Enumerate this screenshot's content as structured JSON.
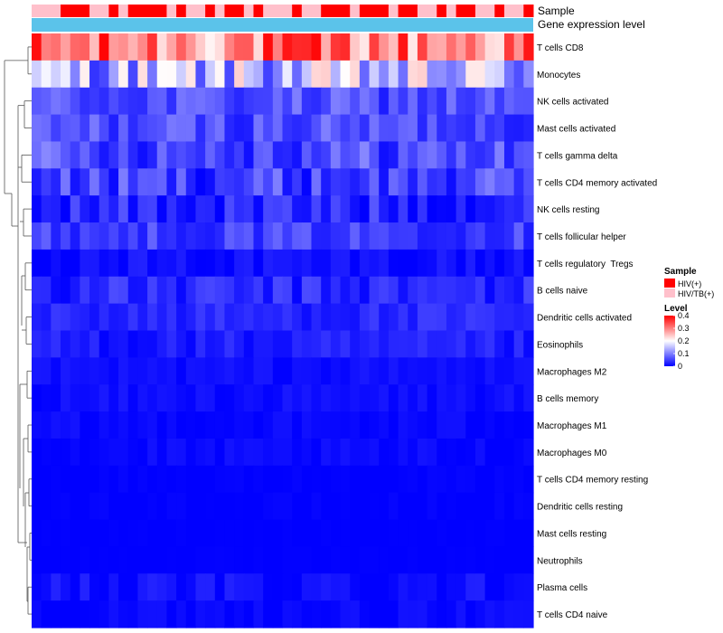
{
  "chart_data": {
    "type": "heatmap",
    "title": "",
    "annotation_tracks": [
      {
        "name": "Sample",
        "label": "Sample"
      },
      {
        "name": "Gene expression level",
        "label": "Gene expression level"
      }
    ],
    "sample_groups": [
      "HIV/TB(+)",
      "HIV/TB(+)",
      "HIV/TB(+)",
      "HIV(+)",
      "HIV(+)",
      "HIV(+)",
      "HIV/TB(+)",
      "HIV/TB(+)",
      "HIV(+)",
      "HIV/TB(+)",
      "HIV(+)",
      "HIV(+)",
      "HIV(+)",
      "HIV(+)",
      "HIV/TB(+)",
      "HIV(+)",
      "HIV/TB(+)",
      "HIV/TB(+)",
      "HIV(+)",
      "HIV/TB(+)",
      "HIV(+)",
      "HIV(+)",
      "HIV/TB(+)",
      "HIV(+)",
      "HIV/TB(+)",
      "HIV/TB(+)",
      "HIV/TB(+)",
      "HIV(+)",
      "HIV/TB(+)",
      "HIV/TB(+)",
      "HIV(+)",
      "HIV(+)",
      "HIV(+)",
      "HIV/TB(+)",
      "HIV(+)",
      "HIV(+)",
      "HIV(+)",
      "HIV/TB(+)",
      "HIV(+)",
      "HIV(+)",
      "HIV/TB(+)",
      "HIV/TB(+)",
      "HIV(+)",
      "HIV/TB(+)",
      "HIV(+)",
      "HIV(+)",
      "HIV/TB(+)",
      "HIV/TB(+)",
      "HIV(+)",
      "HIV/TB(+)",
      "HIV/TB(+)",
      "HIV(+)"
    ],
    "expression_level_color": "#5bc3ea",
    "rows": [
      "T cells CD8",
      "Monocytes",
      "NK cells activated",
      "Mast cells activated",
      "T cells gamma delta",
      "T cells CD4 memory activated",
      "NK cells resting",
      "T cells follicular helper",
      "T cells regulatory  Tregs",
      "B cells naive",
      "Dendritic cells activated",
      "Eosinophils",
      "Macrophages M2",
      "B cells memory",
      "Macrophages M1",
      "Macrophages M0",
      "T cells CD4 memory resting",
      "Dendritic cells resting",
      "Mast cells resting",
      "Neutrophils",
      "Plasma cells",
      "T cells CD4 naive"
    ],
    "row_profiles": [
      {
        "base": 0.3,
        "spread": 0.1,
        "max": 0.4
      },
      {
        "base": 0.14,
        "spread": 0.1,
        "max": 0.4
      },
      {
        "base": 0.06,
        "spread": 0.04,
        "max": 0.15
      },
      {
        "base": 0.06,
        "spread": 0.04,
        "max": 0.15
      },
      {
        "base": 0.06,
        "spread": 0.05,
        "max": 0.2
      },
      {
        "base": 0.05,
        "spread": 0.05,
        "max": 0.2
      },
      {
        "base": 0.03,
        "spread": 0.04,
        "max": 0.15
      },
      {
        "base": 0.05,
        "spread": 0.03,
        "max": 0.1
      },
      {
        "base": 0.01,
        "spread": 0.02,
        "max": 0.08
      },
      {
        "base": 0.03,
        "spread": 0.03,
        "max": 0.1
      },
      {
        "base": 0.03,
        "spread": 0.02,
        "max": 0.08
      },
      {
        "base": 0.02,
        "spread": 0.02,
        "max": 0.08
      },
      {
        "base": 0.01,
        "spread": 0.01,
        "max": 0.08
      },
      {
        "base": 0.01,
        "spread": 0.01,
        "max": 0.05
      },
      {
        "base": 0.005,
        "spread": 0.01,
        "max": 0.04
      },
      {
        "base": 0.005,
        "spread": 0.01,
        "max": 0.05
      },
      {
        "base": 0.0,
        "spread": 0.005,
        "max": 0.05
      },
      {
        "base": 0.0,
        "spread": 0.005,
        "max": 0.04
      },
      {
        "base": 0.0,
        "spread": 0.002,
        "max": 0.02
      },
      {
        "base": 0.0,
        "spread": 0.002,
        "max": 0.02
      },
      {
        "base": 0.01,
        "spread": 0.02,
        "max": 0.08
      },
      {
        "base": 0.005,
        "spread": 0.01,
        "max": 0.06
      }
    ],
    "colorscale": {
      "low": "#0000ff",
      "mid": "#ffffff",
      "high": "#ff0000",
      "min": 0,
      "mid_value": 0.2,
      "max": 0.4
    },
    "legend": {
      "sample_title": "Sample",
      "sample_entries": [
        {
          "label": "HIV(+)",
          "color": "#ff0000"
        },
        {
          "label": "HIV/TB(+)",
          "color": "#ffc0cb"
        }
      ],
      "level_title": "Level",
      "level_ticks": [
        "0.4",
        "0.3",
        "0.2",
        "0.1",
        "0"
      ],
      "level_values": [
        0.4,
        0.3,
        0.2,
        0.1,
        0
      ],
      "position": "right"
    }
  }
}
